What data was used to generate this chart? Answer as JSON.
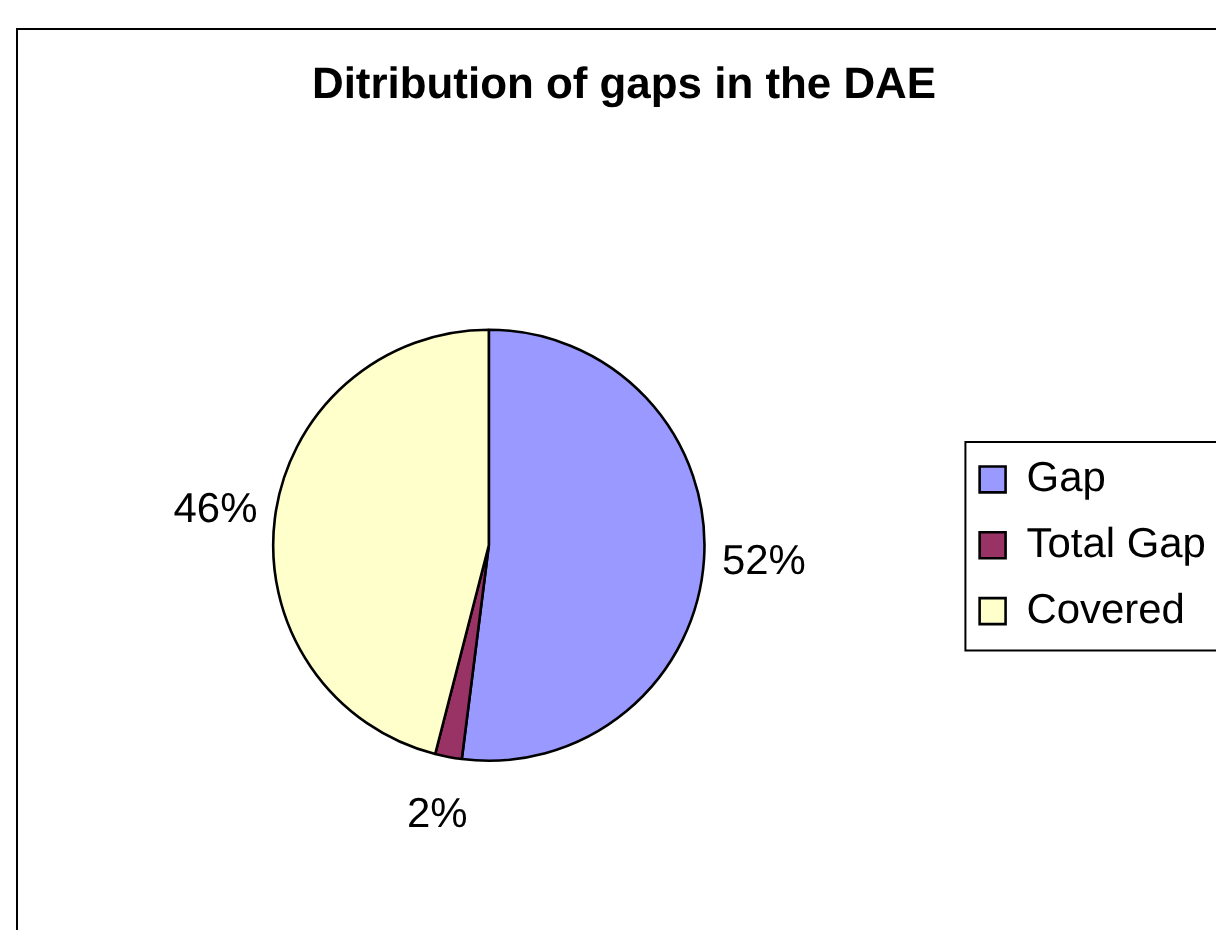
{
  "chart_data": {
    "type": "pie",
    "title": "Ditribution of gaps in the DAE",
    "categories": [
      "Gap",
      "Total Gap",
      "Covered"
    ],
    "values": [
      52,
      2,
      46
    ],
    "colors": [
      "#9999ff",
      "#993366",
      "#ffffcc"
    ],
    "value_labels": [
      "52%",
      "2%",
      "46%"
    ],
    "legend": "right"
  }
}
